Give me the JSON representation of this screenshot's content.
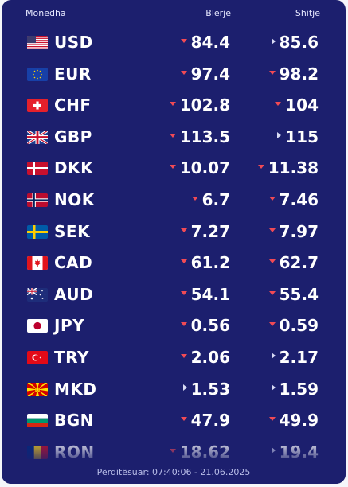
{
  "header": {
    "currency": "Monedha",
    "buy": "Blerje",
    "sell": "Shitje"
  },
  "rows": [
    {
      "code": "USD",
      "buy": "84.4",
      "buy_trend": "down",
      "sell": "85.6",
      "sell_trend": "right"
    },
    {
      "code": "EUR",
      "buy": "97.4",
      "buy_trend": "down",
      "sell": "98.2",
      "sell_trend": "down"
    },
    {
      "code": "CHF",
      "buy": "102.8",
      "buy_trend": "down",
      "sell": "104",
      "sell_trend": "down"
    },
    {
      "code": "GBP",
      "buy": "113.5",
      "buy_trend": "down",
      "sell": "115",
      "sell_trend": "right"
    },
    {
      "code": "DKK",
      "buy": "10.07",
      "buy_trend": "down",
      "sell": "11.38",
      "sell_trend": "down"
    },
    {
      "code": "NOK",
      "buy": "6.7",
      "buy_trend": "down",
      "sell": "7.46",
      "sell_trend": "down"
    },
    {
      "code": "SEK",
      "buy": "7.27",
      "buy_trend": "down",
      "sell": "7.97",
      "sell_trend": "down"
    },
    {
      "code": "CAD",
      "buy": "61.2",
      "buy_trend": "down",
      "sell": "62.7",
      "sell_trend": "down"
    },
    {
      "code": "AUD",
      "buy": "54.1",
      "buy_trend": "down",
      "sell": "55.4",
      "sell_trend": "down"
    },
    {
      "code": "JPY",
      "buy": "0.56",
      "buy_trend": "down",
      "sell": "0.59",
      "sell_trend": "down"
    },
    {
      "code": "TRY",
      "buy": "2.06",
      "buy_trend": "down",
      "sell": "2.17",
      "sell_trend": "right"
    },
    {
      "code": "MKD",
      "buy": "1.53",
      "buy_trend": "right",
      "sell": "1.59",
      "sell_trend": "right"
    },
    {
      "code": "BGN",
      "buy": "47.9",
      "buy_trend": "down",
      "sell": "49.9",
      "sell_trend": "down"
    },
    {
      "code": "RON",
      "buy": "18.62",
      "buy_trend": "down",
      "sell": "19.4",
      "sell_trend": "right"
    }
  ],
  "footer": {
    "updated": "Përditësuar: 07:40:06 - 21.06.2025"
  },
  "colors": {
    "background": "#1c1f6e",
    "trend_down": "#f14a55",
    "trend_neutral": "#d8dbf5",
    "text": "#ffffff"
  }
}
